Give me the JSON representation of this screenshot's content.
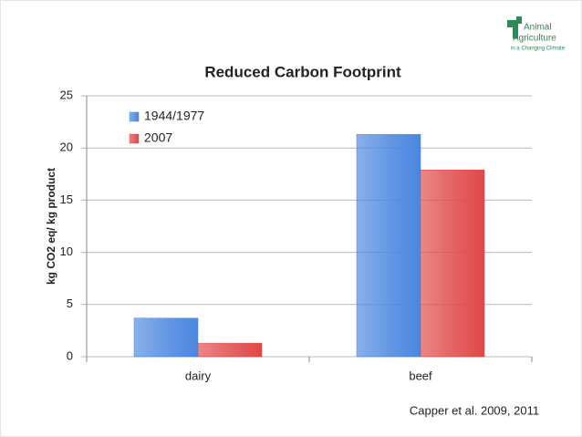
{
  "chart_data": {
    "type": "bar",
    "title": "Reduced Carbon Footprint",
    "y_label": "kg CO2 eq/ kg product",
    "categories": [
      "dairy",
      "beef"
    ],
    "series": [
      {
        "name": "1944/1977",
        "color": "#4a86e0",
        "values": [
          3.7,
          21.3
        ]
      },
      {
        "name": "2007",
        "color": "#e04848",
        "values": [
          1.3,
          17.9
        ]
      }
    ],
    "ylim": [
      0,
      25
    ],
    "yticks": [
      0,
      5,
      10,
      15,
      20,
      25
    ],
    "grid": true,
    "legend": "top-left"
  },
  "citation": "Capper et al. 2009, 2011",
  "logo": [
    "Animal",
    "Agriculture",
    "in a Changing Climate"
  ]
}
